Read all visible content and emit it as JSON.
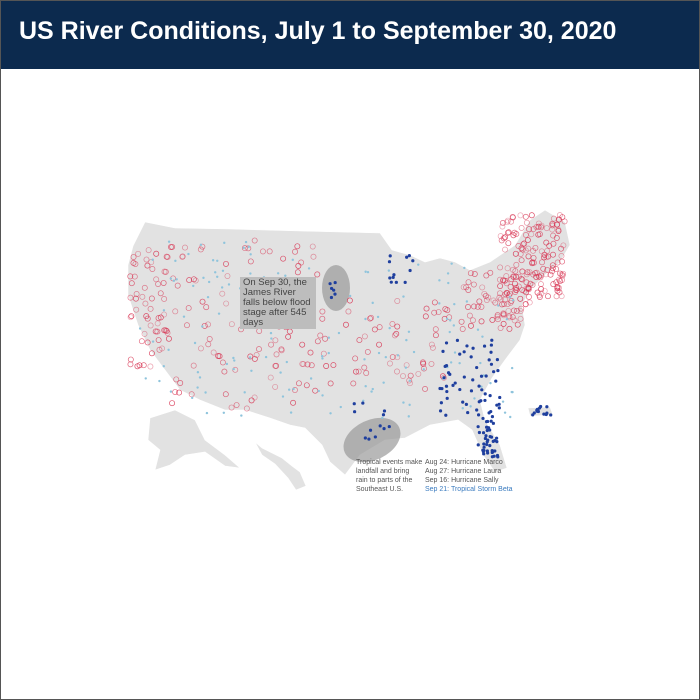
{
  "title": "US River Conditions, July 1 to September 30, 2020",
  "colors": {
    "header": "#0c2a4e",
    "land": "#e2e2e2",
    "above_normal": "#d7304f",
    "below_normal": "#1f3f9e",
    "light_blue": "#8fc4dc",
    "highlight": "#3a7bbf"
  },
  "annotations": {
    "james_river": "On Sep 30, the James River falls below flood stage after 545 days",
    "tropical": [
      "Tropical events make",
      "landfall and bring",
      "rain to parts of the",
      "Southeast U.S."
    ],
    "storms": [
      "Aug 24: Hurricane Marco",
      "Aug 27: Hurricane Laura",
      "Sep 16: Hurricane Sally",
      "Sep 21: Tropical Storm Beta"
    ]
  }
}
